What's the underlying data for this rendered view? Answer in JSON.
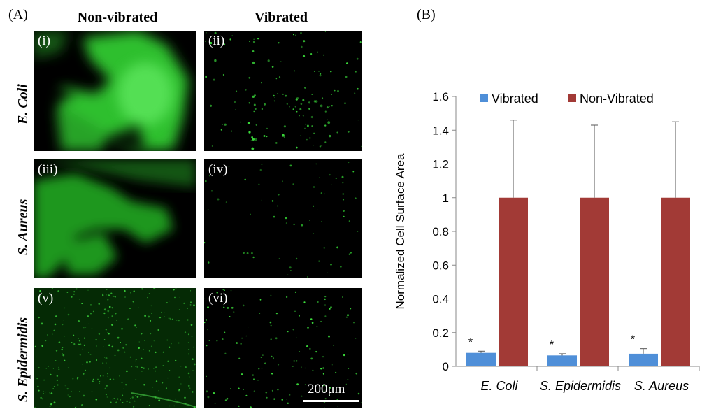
{
  "panel_a": {
    "label": "(A)",
    "columns": [
      "Non-vibrated",
      "Vibrated"
    ],
    "rows": [
      "E. Coli",
      "S. Aureus",
      "S. Epidermidis"
    ],
    "tiles": [
      "(i)",
      "(ii)",
      "(iii)",
      "(iv)",
      "(v)",
      "(vi)"
    ],
    "scale_bar": "200μm",
    "colors": {
      "fluorescence": "#2fd62f",
      "background": "#000000"
    }
  },
  "panel_b": {
    "label": "(B)"
  },
  "chart_data": {
    "type": "bar",
    "categories": [
      "E. Coli",
      "S. Epidermidis",
      "S. Aureus"
    ],
    "series": [
      {
        "name": "Vibrated",
        "color": "#4f8fd8",
        "values": [
          0.08,
          0.065,
          0.075
        ],
        "errors": [
          0.01,
          0.01,
          0.03
        ],
        "annotations": [
          "*",
          "*",
          "*"
        ]
      },
      {
        "name": "Non-Vibrated",
        "color": "#a23a36",
        "values": [
          1.0,
          1.0,
          1.0
        ],
        "errors": [
          0.46,
          0.43,
          0.45
        ]
      }
    ],
    "ylabel": "Normalized Cell Surface Area",
    "ylim": [
      0,
      1.6
    ],
    "yticks": [
      "0",
      "0.2",
      "0.4",
      "0.6",
      "0.8",
      "1",
      "1.2",
      "1.4",
      "1.6"
    ],
    "grid": false,
    "legend_position": "top"
  }
}
